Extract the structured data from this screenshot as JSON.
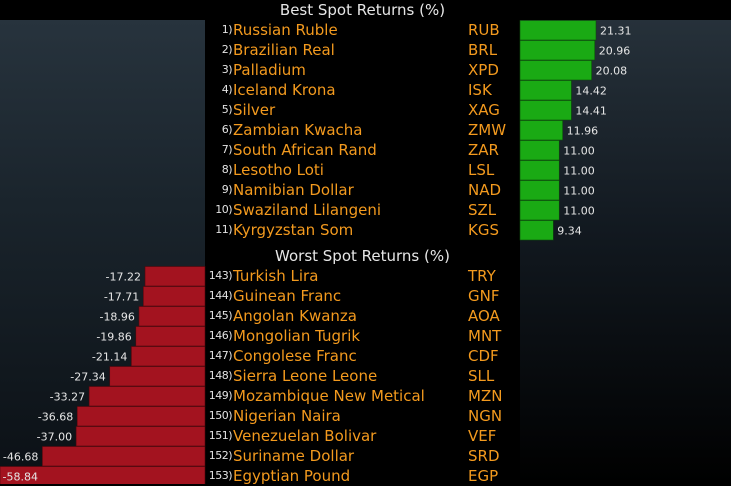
{
  "chart_data": [
    {
      "type": "bar",
      "title": "Best Spot Returns (%)",
      "ranks": [
        "1)",
        "2)",
        "3)",
        "4)",
        "5)",
        "6)",
        "7)",
        "8)",
        "9)",
        "10)",
        "11)"
      ],
      "categories": [
        "Russian Ruble",
        "Brazilian Real",
        "Palladium",
        "Iceland Krona",
        "Silver",
        "Zambian Kwacha",
        "South African Rand",
        "Lesotho Loti",
        "Namibian Dollar",
        "Swaziland Lilangeni",
        "Kyrgyzstan Som"
      ],
      "codes": [
        "RUB",
        "BRL",
        "XPD",
        "ISK",
        "XAG",
        "ZMW",
        "ZAR",
        "LSL",
        "NAD",
        "SZL",
        "KGS"
      ],
      "values": [
        21.31,
        20.96,
        20.08,
        14.42,
        14.41,
        11.96,
        11.0,
        11.0,
        11.0,
        11.0,
        9.34
      ],
      "value_labels": [
        "21.31",
        "20.96",
        "20.08",
        "14.42",
        "14.41",
        "11.96",
        "11.00",
        "11.00",
        "11.00",
        "11.00",
        "9.34"
      ],
      "xlim": [
        0,
        25
      ],
      "bar_color": "#1aaa14"
    },
    {
      "type": "bar",
      "title": "Worst Spot Returns (%)",
      "ranks": [
        "143)",
        "144)",
        "145)",
        "146)",
        "147)",
        "148)",
        "149)",
        "150)",
        "151)",
        "152)",
        "153)"
      ],
      "categories": [
        "Turkish Lira",
        "Guinean Franc",
        "Angolan Kwanza",
        "Mongolian Tugrik",
        "Congolese Franc",
        "Sierra Leone Leone",
        "Mozambique New Metical",
        "Nigerian Naira",
        "Venezuelan Bolivar",
        "Suriname Dollar",
        "Egyptian Pound"
      ],
      "codes": [
        "TRY",
        "GNF",
        "AOA",
        "MNT",
        "CDF",
        "SLL",
        "MZN",
        "NGN",
        "VEF",
        "SRD",
        "EGP"
      ],
      "values": [
        -17.22,
        -17.71,
        -18.96,
        -19.86,
        -21.14,
        -27.34,
        -33.27,
        -36.68,
        -37.0,
        -46.68,
        -58.84
      ],
      "value_labels": [
        "-17.22",
        "-17.71",
        "-18.96",
        "-19.86",
        "-21.14",
        "-27.34",
        "-33.27",
        "-36.68",
        "-37.00",
        "-46.68",
        "-58.84"
      ],
      "xlim": [
        -60,
        0
      ],
      "bar_color": "#a3131f"
    }
  ],
  "colors": {
    "text_orange": "#f39a1e",
    "title_text": "#e6e6e6",
    "background": "#000000"
  }
}
